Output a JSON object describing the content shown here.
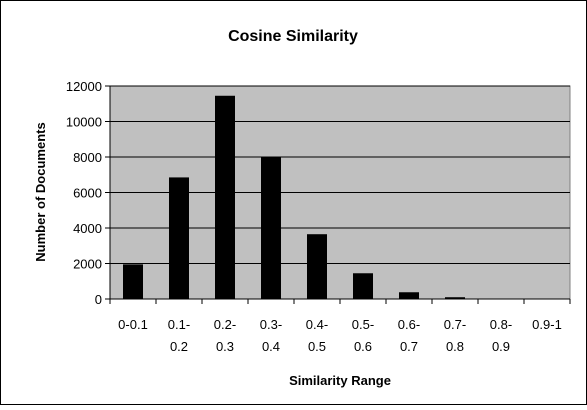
{
  "chart_data": {
    "type": "bar",
    "title": "Cosine Similarity",
    "xlabel": "Similarity Range",
    "ylabel": "Number of Documents",
    "categories": [
      "0-0.1",
      "0.1-0.2",
      "0.2-0.3",
      "0.3-0.4",
      "0.4-0.5",
      "0.5-0.6",
      "0.6-0.7",
      "0.7-0.8",
      "0.8-0.9",
      "0.9-1"
    ],
    "category_lines": [
      [
        "0-0.1"
      ],
      [
        "0.1-",
        "0.2"
      ],
      [
        "0.2-",
        "0.3"
      ],
      [
        "0.3-",
        "0.4"
      ],
      [
        "0.4-",
        "0.5"
      ],
      [
        "0.5-",
        "0.6"
      ],
      [
        "0.6-",
        "0.7"
      ],
      [
        "0.7-",
        "0.8"
      ],
      [
        "0.8-",
        "0.9"
      ],
      [
        "0.9-1"
      ]
    ],
    "values": [
      1950,
      6850,
      11450,
      8000,
      3650,
      1450,
      380,
      100,
      0,
      0
    ],
    "ylim": [
      0,
      12000
    ],
    "yticks": [
      0,
      2000,
      4000,
      6000,
      8000,
      10000,
      12000
    ],
    "ytick_labels": [
      "0",
      "2000",
      "4000",
      "6000",
      "8000",
      "10000",
      "12000"
    ],
    "grid": true,
    "legend": "none",
    "colors": {
      "bar": "#000000",
      "plot_background": "#c0c0c0",
      "gridline": "#000000",
      "frame_border": "#000000"
    }
  }
}
